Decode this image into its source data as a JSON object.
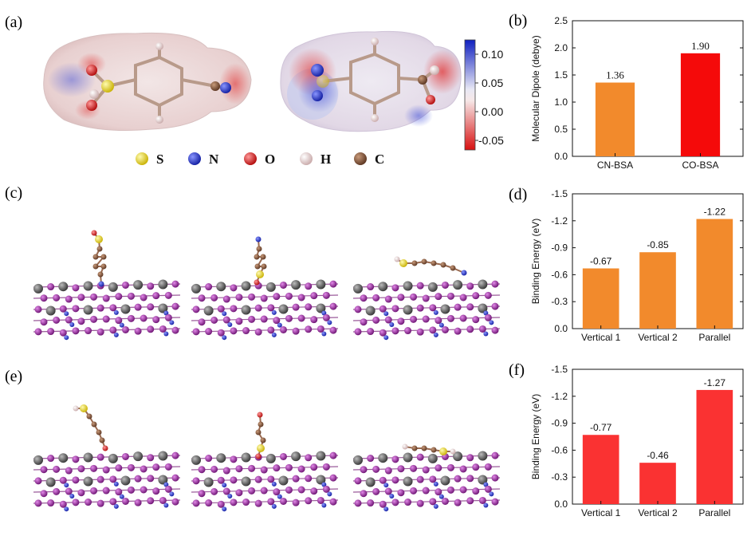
{
  "panel_labels": {
    "a": "(a)",
    "b": "(b)",
    "c": "(c)",
    "d": "(d)",
    "e": "(e)",
    "f": "(f)"
  },
  "colorbar": {
    "ticks": [
      "0.10",
      "0.05",
      "0.00",
      "-0.05"
    ],
    "colors": {
      "max": "#1020c0",
      "mid": "#f2f2f2",
      "min": "#d81010"
    }
  },
  "atom_legend": [
    {
      "symbol": "S",
      "color": "#e6d21a"
    },
    {
      "symbol": "N",
      "color": "#2a3ad0"
    },
    {
      "symbol": "O",
      "color": "#e02020"
    },
    {
      "symbol": "H",
      "color": "#f0d6d6"
    },
    {
      "symbol": "C",
      "color": "#8a5a3c"
    }
  ],
  "structure_colors": {
    "slab_purple": "#9a3aa0",
    "slab_grey": "#5a5a5a",
    "bond": "#9a5a9a"
  },
  "chart_data": [
    {
      "id": "b",
      "type": "bar",
      "categories": [
        "CN-BSA",
        "CO-BSA"
      ],
      "values": [
        1.36,
        1.9
      ],
      "data_labels": [
        "1.36",
        "1.90"
      ],
      "colors": [
        "#f28a2c",
        "#f50a0a"
      ],
      "ylabel": "Molecular Dipole (debye)",
      "xlabel": "",
      "ylim": [
        0,
        2.5
      ],
      "yticks": [
        0.0,
        0.5,
        1.0,
        1.5,
        2.0,
        2.5
      ],
      "ytick_labels": [
        "0.0",
        "0.5",
        "1.0",
        "1.5",
        "2.0",
        "2.5"
      ],
      "inverted": false
    },
    {
      "id": "d",
      "type": "bar",
      "categories": [
        "Vertical 1",
        "Vertical 2",
        "Parallel"
      ],
      "values": [
        -0.67,
        -0.85,
        -1.22
      ],
      "data_labels": [
        "-0.67",
        "-0.85",
        "-1.22"
      ],
      "colors": [
        "#f28a2c",
        "#f28a2c",
        "#f28a2c"
      ],
      "ylabel": "Binding Energy (eV)",
      "xlabel": "",
      "ylim": [
        0,
        -1.5
      ],
      "yticks": [
        0.0,
        -0.3,
        -0.6,
        -0.9,
        -1.2,
        -1.5
      ],
      "ytick_labels": [
        "0.0",
        "-0.3",
        "-0.6",
        "-0.9",
        "-1.2",
        "-1.5"
      ],
      "inverted": true
    },
    {
      "id": "f",
      "type": "bar",
      "categories": [
        "Vertical 1",
        "Vertical 2",
        "Parallel"
      ],
      "values": [
        -0.77,
        -0.46,
        -1.27
      ],
      "data_labels": [
        "-0.77",
        "-0.46",
        "-1.27"
      ],
      "colors": [
        "#fa3232",
        "#fa3232",
        "#fa3232"
      ],
      "ylabel": "Binding Energy (eV)",
      "xlabel": "",
      "ylim": [
        0,
        -1.5
      ],
      "yticks": [
        0.0,
        -0.3,
        -0.6,
        -0.9,
        -1.2,
        -1.5
      ],
      "ytick_labels": [
        "0.0",
        "-0.3",
        "-0.6",
        "-0.9",
        "-1.2",
        "-1.5"
      ],
      "inverted": true
    }
  ]
}
